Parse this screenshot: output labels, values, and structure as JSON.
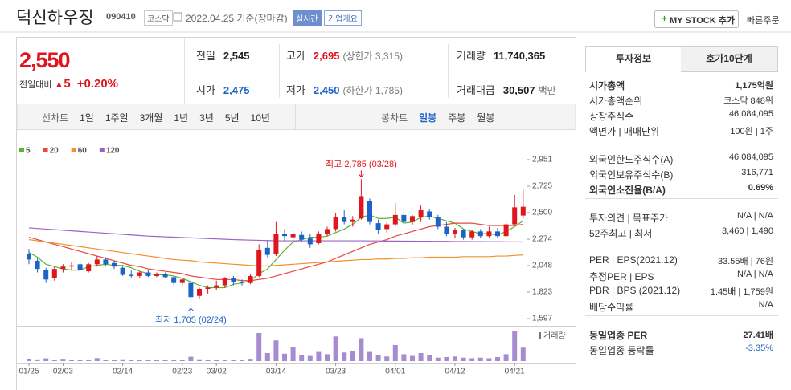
{
  "header": {
    "name": "덕신하우징",
    "code": "090410",
    "market": "코스닥",
    "date": "2022.04.25 기준(장마감)",
    "realtime": "실시간",
    "company_info": "기업개요",
    "my_stock": "MY STOCK 추가",
    "quick_order": "빠른주문"
  },
  "price": {
    "current": "2,550",
    "change_label": "전일대비",
    "change": "5",
    "change_rate": "+0.20%"
  },
  "summary": [
    [
      {
        "label": "전일",
        "value": "2,545"
      },
      {
        "label": "고가",
        "value": "2,695",
        "color": "#e0161f",
        "note": "(상한가 3,315)"
      },
      {
        "label": "거래량",
        "value": "11,740,365"
      }
    ],
    [
      {
        "label": "시가",
        "value": "2,475",
        "color": "#1d63c6"
      },
      {
        "label": "저가",
        "value": "2,450",
        "color": "#1d63c6",
        "note": "(하한가 1,785)"
      },
      {
        "label": "거래대금",
        "value": "30,507",
        "note": "백만"
      }
    ]
  ],
  "tabs": {
    "line_chart": "선차트",
    "periods": [
      "1일",
      "1주일",
      "3개월",
      "1년",
      "3년",
      "5년",
      "10년"
    ],
    "candle_chart": "봉차트",
    "candle_periods": [
      "일봉",
      "주봉",
      "월봉"
    ],
    "candle_active": 0
  },
  "chart_data": {
    "type": "candlestick",
    "categories": [
      "01/25",
      null,
      null,
      null,
      "02/03",
      null,
      null,
      null,
      null,
      null,
      null,
      "02/14",
      null,
      null,
      null,
      null,
      null,
      null,
      "02/23",
      null,
      null,
      null,
      "03/02",
      null,
      null,
      null,
      null,
      null,
      null,
      "03/14",
      null,
      null,
      null,
      null,
      null,
      null,
      "03/23",
      null,
      null,
      null,
      null,
      null,
      null,
      "04/01",
      null,
      null,
      null,
      null,
      null,
      null,
      "04/12",
      null,
      null,
      null,
      null,
      null,
      null,
      "04/21",
      null
    ],
    "open": [
      2150,
      2090,
      2010,
      1940,
      2020,
      2040,
      2060,
      2000,
      2060,
      2100,
      2070,
      2030,
      1970,
      1960,
      1990,
      1960,
      1980,
      1950,
      1900,
      1900,
      1790,
      1850,
      1860,
      1880,
      1940,
      1910,
      1900,
      1960,
      2200,
      2150,
      2320,
      2290,
      2310,
      2280,
      2240,
      2320,
      2360,
      2460,
      2420,
      2450,
      2600,
      2410,
      2360,
      2400,
      2480,
      2420,
      2460,
      2510,
      2460,
      2380,
      2320,
      2350,
      2290,
      2340,
      2300,
      2340,
      2300,
      2400,
      2475
    ],
    "high": [
      2190,
      2110,
      2030,
      2040,
      2060,
      2080,
      2090,
      2070,
      2130,
      2120,
      2090,
      2040,
      2010,
      2000,
      2010,
      1990,
      1990,
      1960,
      1940,
      1920,
      1860,
      1880,
      1920,
      1950,
      1960,
      1930,
      1980,
      2230,
      2260,
      2420,
      2360,
      2330,
      2340,
      2320,
      2340,
      2380,
      2500,
      2520,
      2470,
      2785,
      2620,
      2440,
      2420,
      2580,
      2540,
      2480,
      2560,
      2530,
      2480,
      2420,
      2370,
      2360,
      2350,
      2360,
      2380,
      2370,
      2420,
      2650,
      2695
    ],
    "low": [
      2060,
      1990,
      1900,
      1920,
      1990,
      2010,
      2000,
      1990,
      2040,
      2040,
      2020,
      1960,
      1940,
      1940,
      1950,
      1950,
      1940,
      1880,
      1880,
      1705,
      1770,
      1810,
      1840,
      1860,
      1880,
      1880,
      1890,
      1950,
      2120,
      2130,
      2260,
      2250,
      2250,
      2200,
      2230,
      2300,
      2340,
      2400,
      2380,
      2440,
      2400,
      2320,
      2330,
      2380,
      2400,
      2390,
      2420,
      2440,
      2360,
      2300,
      2280,
      2270,
      2270,
      2280,
      2290,
      2280,
      2290,
      2390,
      2450
    ],
    "close": [
      2100,
      2020,
      1930,
      2020,
      2040,
      2050,
      2010,
      2060,
      2100,
      2060,
      2040,
      1970,
      1960,
      1990,
      1960,
      1980,
      1950,
      1900,
      1930,
      1780,
      1850,
      1860,
      1880,
      1940,
      1910,
      1900,
      1960,
      2180,
      2140,
      2320,
      2300,
      2320,
      2270,
      2230,
      2320,
      2360,
      2460,
      2420,
      2440,
      2640,
      2420,
      2350,
      2400,
      2480,
      2420,
      2470,
      2520,
      2460,
      2380,
      2320,
      2350,
      2290,
      2340,
      2300,
      2340,
      2300,
      2400,
      2545,
      2550
    ],
    "up_color": "#e0161f",
    "down_color": "#1d63c6",
    "series": [
      {
        "name": "5",
        "color": "#5cb531",
        "values": [
          2160,
          2120,
          2060,
          2040,
          2020,
          2010,
          2010,
          2040,
          2050,
          2060,
          2050,
          2050,
          2030,
          2000,
          1980,
          1970,
          1970,
          1960,
          1940,
          1910,
          1880,
          1860,
          1860,
          1860,
          1890,
          1900,
          1920,
          1980,
          2020,
          2100,
          2180,
          2250,
          2270,
          2290,
          2290,
          2300,
          2330,
          2360,
          2400,
          2460,
          2480,
          2450,
          2450,
          2460,
          2410,
          2420,
          2460,
          2470,
          2450,
          2430,
          2410,
          2360,
          2340,
          2320,
          2320,
          2310,
          2340,
          2380,
          2430
        ]
      },
      {
        "name": "20",
        "color": "#e8473f",
        "values": [
          2290,
          2270,
          2250,
          2230,
          2210,
          2190,
          2170,
          2150,
          2130,
          2110,
          2090,
          2070,
          2050,
          2040,
          2020,
          2010,
          2000,
          1990,
          1980,
          1960,
          1950,
          1940,
          1930,
          1930,
          1930,
          1920,
          1920,
          1930,
          1940,
          1960,
          1980,
          2000,
          2020,
          2040,
          2060,
          2080,
          2110,
          2140,
          2170,
          2200,
          2230,
          2250,
          2270,
          2300,
          2320,
          2340,
          2360,
          2380,
          2390,
          2400,
          2410,
          2410,
          2410,
          2400,
          2390,
          2390,
          2390,
          2390,
          2400
        ]
      },
      {
        "name": "60",
        "color": "#f0912c",
        "values": [
          2270,
          2260,
          2250,
          2240,
          2230,
          2220,
          2210,
          2200,
          2190,
          2180,
          2170,
          2160,
          2150,
          2140,
          2130,
          2120,
          2110,
          2100,
          2095,
          2090,
          2080,
          2075,
          2070,
          2065,
          2060,
          2055,
          2050,
          2045,
          2045,
          2050,
          2055,
          2060,
          2065,
          2070,
          2075,
          2080,
          2085,
          2090,
          2095,
          2100,
          2100,
          2105,
          2105,
          2110,
          2110,
          2115,
          2115,
          2120,
          2120,
          2120,
          2120,
          2125,
          2125,
          2125,
          2125,
          2130,
          2130,
          2135,
          2140
        ]
      },
      {
        "name": "120",
        "color": "#9c63c6",
        "values": [
          2370,
          2365,
          2360,
          2355,
          2350,
          2345,
          2340,
          2335,
          2330,
          2325,
          2320,
          2315,
          2310,
          2305,
          2300,
          2297,
          2294,
          2291,
          2288,
          2285,
          2282,
          2279,
          2276,
          2273,
          2270,
          2268,
          2266,
          2264,
          2262,
          2260,
          2260,
          2260,
          2260,
          2260,
          2260,
          2260,
          2260,
          2260,
          2260,
          2260,
          2259,
          2259,
          2258,
          2258,
          2257,
          2257,
          2256,
          2256,
          2255,
          2255,
          2254,
          2254,
          2253,
          2253,
          2252,
          2252,
          2251,
          2251,
          2250
        ]
      }
    ],
    "ylim": [
      1597,
      2951
    ],
    "yticks": [
      {
        "value": 2951,
        "label": "2,951"
      },
      {
        "value": 2725,
        "label": "2,725"
      },
      {
        "value": 2500,
        "label": "2,500"
      },
      {
        "value": 2274,
        "label": "2,274"
      },
      {
        "value": 2048,
        "label": "2,048"
      },
      {
        "value": 1823,
        "label": "1,823"
      },
      {
        "value": 1597,
        "label": "1,597"
      }
    ],
    "volume": {
      "label": "거래량",
      "color": "#a68bd0",
      "ylim": [
        0,
        28000000
      ],
      "values": [
        2100000,
        1500000,
        2400000,
        1200000,
        2000000,
        1100000,
        1400000,
        1200000,
        2600000,
        1000000,
        900000,
        1600000,
        1000000,
        800000,
        900000,
        700000,
        800000,
        1300000,
        1000000,
        3800000,
        1600000,
        1200000,
        1000000,
        1400000,
        900000,
        800000,
        2000000,
        24500000,
        7000000,
        18000000,
        6500000,
        12000000,
        5000000,
        4500000,
        8000000,
        6000000,
        21500000,
        7500000,
        9000000,
        20000000,
        8000000,
        5500000,
        4000000,
        14000000,
        6000000,
        4500000,
        7000000,
        5000000,
        3000000,
        3500000,
        4000000,
        3000000,
        2500000,
        3000000,
        2500000,
        3500000,
        6000000,
        26000000,
        11740365
      ]
    },
    "high_label": "최고 2,785 (03/28)",
    "low_label": "최저 1,705 (02/24)"
  },
  "panel": {
    "tabs": [
      "투자정보",
      "호가10단계"
    ],
    "active": 0,
    "groups": [
      [
        {
          "label": "시가총액",
          "value": "1,175억원",
          "bold": true
        },
        {
          "label": "시가총액순위",
          "value": "코스닥 848위"
        },
        {
          "label": "상장주식수",
          "value": "46,084,095"
        },
        {
          "label": "액면가 | 매매단위",
          "value": "100원 | 1주"
        }
      ],
      [
        {
          "label": "외국인한도주식수(A)",
          "value": "46,084,095"
        },
        {
          "label": "외국인보유주식수(B)",
          "value": "316,771"
        },
        {
          "label": "외국인소진율(B/A)",
          "value": "0.69%",
          "bold": true
        }
      ],
      [
        {
          "label": "투자의견 | 목표주가",
          "value": "N/A | N/A"
        },
        {
          "label": "52주최고 | 최저",
          "value": "3,460 | 1,490"
        }
      ],
      [
        {
          "label": "PER | EPS(2021.12)",
          "value": "33.55배 | 76원"
        },
        {
          "label": "추정PER | EPS",
          "value": "N/A | N/A"
        },
        {
          "label": "PBR | BPS (2021.12)",
          "value": "1.45배 | 1,759원"
        },
        {
          "label": "배당수익률",
          "value": "N/A"
        }
      ],
      [
        {
          "label": "동일업종 PER",
          "value": "27.41배",
          "bold": true
        },
        {
          "label": "동일업종 등락률",
          "value": "-3.35%",
          "color": "#1d63c6"
        }
      ]
    ]
  }
}
